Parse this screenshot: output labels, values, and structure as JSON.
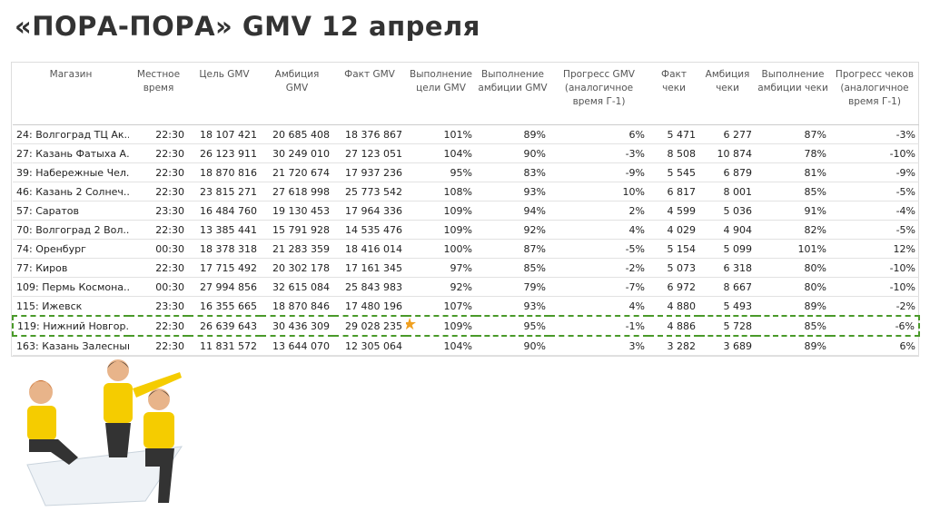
{
  "title": "«ПОРА-ПОРА» GMV  12 апреля",
  "table": {
    "headers": [
      "Магазин",
      "Местное время",
      "Цель GMV",
      "Амбиция GMV",
      "Факт GMV",
      "Выполнение цели GMV",
      "Выполнение амбиции GMV",
      "Прогресс GMV (аналогичное время Г-1)",
      "Факт чеки",
      "Амбиция чеки",
      "Выполнение амбиции чеки",
      "Прогресс чеков (аналогичное время Г-1)"
    ],
    "rows": [
      [
        "24: Волгоград ТЦ Ак...",
        "22:30",
        "18 107 421",
        "20 685 408",
        "18 376 867",
        "101%",
        "89%",
        "6%",
        "5 471",
        "6 277",
        "87%",
        "-3%"
      ],
      [
        "27: Казань Фатыха А...",
        "22:30",
        "26 123 911",
        "30 249 010",
        "27 123 051",
        "104%",
        "90%",
        "-3%",
        "8 508",
        "10 874",
        "78%",
        "-10%"
      ],
      [
        "39: Набережные Чел...",
        "22:30",
        "18 870 816",
        "21 720 674",
        "17 937 236",
        "95%",
        "83%",
        "-9%",
        "5 545",
        "6 879",
        "81%",
        "-9%"
      ],
      [
        "46: Казань 2 Солнеч...",
        "22:30",
        "23 815 271",
        "27 618 998",
        "25 773 542",
        "108%",
        "93%",
        "10%",
        "6 817",
        "8 001",
        "85%",
        "-5%"
      ],
      [
        "57: Саратов",
        "23:30",
        "16 484 760",
        "19 130 453",
        "17 964 336",
        "109%",
        "94%",
        "2%",
        "4 599",
        "5 036",
        "91%",
        "-4%"
      ],
      [
        "70: Волгоград 2 Вол...",
        "22:30",
        "13 385 441",
        "15 791 928",
        "14 535 476",
        "109%",
        "92%",
        "4%",
        "4 029",
        "4 904",
        "82%",
        "-5%"
      ],
      [
        "74: Оренбург",
        "00:30",
        "18 378 318",
        "21 283 359",
        "18 416 014",
        "100%",
        "87%",
        "-5%",
        "5 154",
        "5 099",
        "101%",
        "12%"
      ],
      [
        "77: Киров",
        "22:30",
        "17 715 492",
        "20 302 178",
        "17 161 345",
        "97%",
        "85%",
        "-2%",
        "5 073",
        "6 318",
        "80%",
        "-10%"
      ],
      [
        "109: Пермь Космона...",
        "00:30",
        "27 994 856",
        "32 615 084",
        "25 843 983",
        "92%",
        "79%",
        "-7%",
        "6 972",
        "8 667",
        "80%",
        "-10%"
      ],
      [
        "115: Ижевск",
        "23:30",
        "16 355 665",
        "18 870 846",
        "17 480 196",
        "107%",
        "93%",
        "4%",
        "4 880",
        "5 493",
        "89%",
        "-2%"
      ],
      [
        "119: Нижний Новгор...",
        "22:30",
        "26 639 643",
        "30 436 309",
        "29 028 235",
        "109%",
        "95%",
        "-1%",
        "4 886",
        "5 728",
        "85%",
        "-6%"
      ],
      [
        "163: Казань Залесный",
        "22:30",
        "11 831 572",
        "13 644 070",
        "12 305 064",
        "104%",
        "90%",
        "3%",
        "3 282",
        "3 689",
        "89%",
        "6%"
      ]
    ]
  }
}
